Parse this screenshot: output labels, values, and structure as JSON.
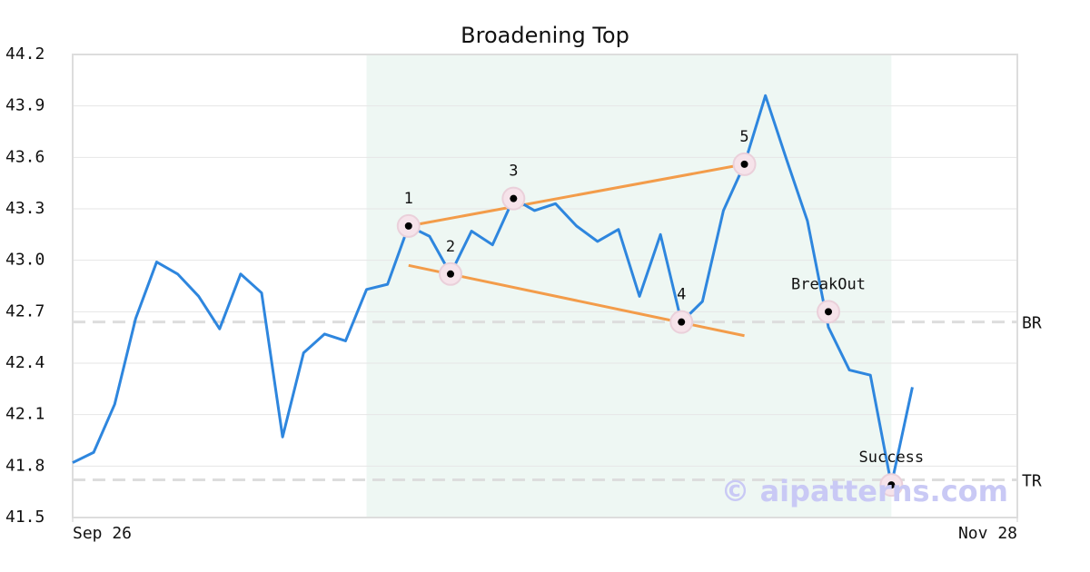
{
  "chart_data": {
    "type": "line",
    "title": "Broadening Top",
    "x": [
      0,
      1,
      2,
      3,
      4,
      5,
      6,
      7,
      8,
      9,
      10,
      11,
      12,
      13,
      14,
      15,
      16,
      17,
      18,
      19,
      20,
      21,
      22,
      23,
      24,
      25,
      26,
      27,
      28,
      29,
      30,
      31,
      32,
      33,
      34,
      35,
      36,
      37,
      38,
      39,
      40
    ],
    "xlim": [
      0,
      45
    ],
    "xticks": [
      {
        "value": 0,
        "label": "Sep 26"
      },
      {
        "value": 45,
        "label": "Nov 28"
      }
    ],
    "ylim": [
      41.5,
      44.2
    ],
    "yticks": [
      41.5,
      41.8,
      42.1,
      42.4,
      42.7,
      {
        "value": 43,
        "label": "43.0"
      },
      43.3,
      43.6,
      43.9,
      44.2
    ],
    "grid": true,
    "series": [
      {
        "color": "#2e86de",
        "values": [
          41.82,
          41.88,
          42.16,
          42.66,
          42.99,
          42.92,
          42.79,
          42.6,
          42.92,
          42.81,
          41.97,
          42.46,
          42.57,
          42.53,
          42.83,
          42.86,
          43.2,
          43.14,
          42.92,
          43.17,
          43.09,
          43.36,
          43.29,
          43.33,
          43.2,
          43.11,
          43.18,
          42.79,
          43.15,
          42.64,
          42.76,
          43.29,
          43.56,
          43.96,
          43.59,
          43.23,
          42.61,
          42.36,
          42.33,
          41.69,
          42.26
        ]
      }
    ],
    "shaded_region": [
      14,
      39
    ],
    "shaded_color": "#eef7f3",
    "levels": [
      {
        "label": "BR",
        "value": 42.64
      },
      {
        "label": "TR",
        "value": 41.72
      }
    ],
    "trendlines": [
      {
        "color": "#f39c4a",
        "x": [
          16,
          32
        ],
        "values": [
          43.2,
          43.56
        ]
      },
      {
        "color": "#f39c4a",
        "x": [
          16,
          32
        ],
        "values": [
          42.97,
          42.56
        ]
      }
    ],
    "markers": [
      {
        "label": "1",
        "x": 16,
        "value": 43.2
      },
      {
        "label": "2",
        "x": 18,
        "value": 42.92
      },
      {
        "label": "3",
        "x": 21,
        "value": 43.36
      },
      {
        "label": "4",
        "x": 29,
        "value": 42.64
      },
      {
        "label": "5",
        "x": 32,
        "value": 43.56
      },
      {
        "label": "BreakOut",
        "x": 36,
        "value": 42.7
      },
      {
        "label": "Success",
        "x": 39,
        "value": 41.69
      }
    ],
    "watermark": "© aipatterns.com"
  }
}
